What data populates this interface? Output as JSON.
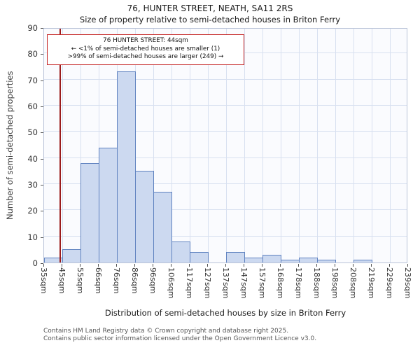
{
  "title": "76, HUNTER STREET, NEATH, SA11 2RS",
  "subtitle": "Size of property relative to semi-detached houses in Briton Ferry",
  "annotation": {
    "line1": "76 HUNTER STREET: 44sqm",
    "line2": "← <1% of semi-detached houses are smaller (1)",
    "line3": ">99% of semi-detached houses are larger (249) →",
    "border_color": "#c42222"
  },
  "chart_data": {
    "type": "bar",
    "title": "76, HUNTER STREET, NEATH, SA11 2RS",
    "subtitle": "Size of property relative to semi-detached houses in Briton Ferry",
    "xlabel": "Distribution of semi-detached houses by size in Briton Ferry",
    "ylabel": "Number of semi-detached properties",
    "categories": [
      "35sqm",
      "45sqm",
      "55sqm",
      "66sqm",
      "76sqm",
      "86sqm",
      "96sqm",
      "106sqm",
      "117sqm",
      "127sqm",
      "137sqm",
      "147sqm",
      "157sqm",
      "168sqm",
      "178sqm",
      "188sqm",
      "198sqm",
      "208sqm",
      "219sqm",
      "229sqm",
      "239sqm"
    ],
    "bin_edges_sqm": [
      35,
      45,
      55,
      66,
      76,
      86,
      96,
      106,
      117,
      127,
      137,
      147,
      157,
      168,
      178,
      188,
      198,
      208,
      219,
      229,
      239
    ],
    "values": [
      2,
      5,
      38,
      44,
      73,
      35,
      27,
      8,
      4,
      0,
      4,
      2,
      3,
      1,
      2,
      1,
      0,
      1,
      0,
      0
    ],
    "ylim": [
      0,
      90
    ],
    "yticks": [
      0,
      10,
      20,
      30,
      40,
      50,
      60,
      70,
      80,
      90
    ],
    "grid": true,
    "legend": "none",
    "marker": {
      "value_sqm": 44,
      "color": "#9b1c1c"
    },
    "colors": {
      "bar_fill": "#ccd9f0",
      "bar_edge": "#5f82c0",
      "grid": "#d8e0f0",
      "plot_bg": "#fafbfe"
    }
  },
  "footer": {
    "line1": "Contains HM Land Registry data © Crown copyright and database right 2025.",
    "line2": "Contains public sector information licensed under the Open Government Licence v3.0."
  }
}
